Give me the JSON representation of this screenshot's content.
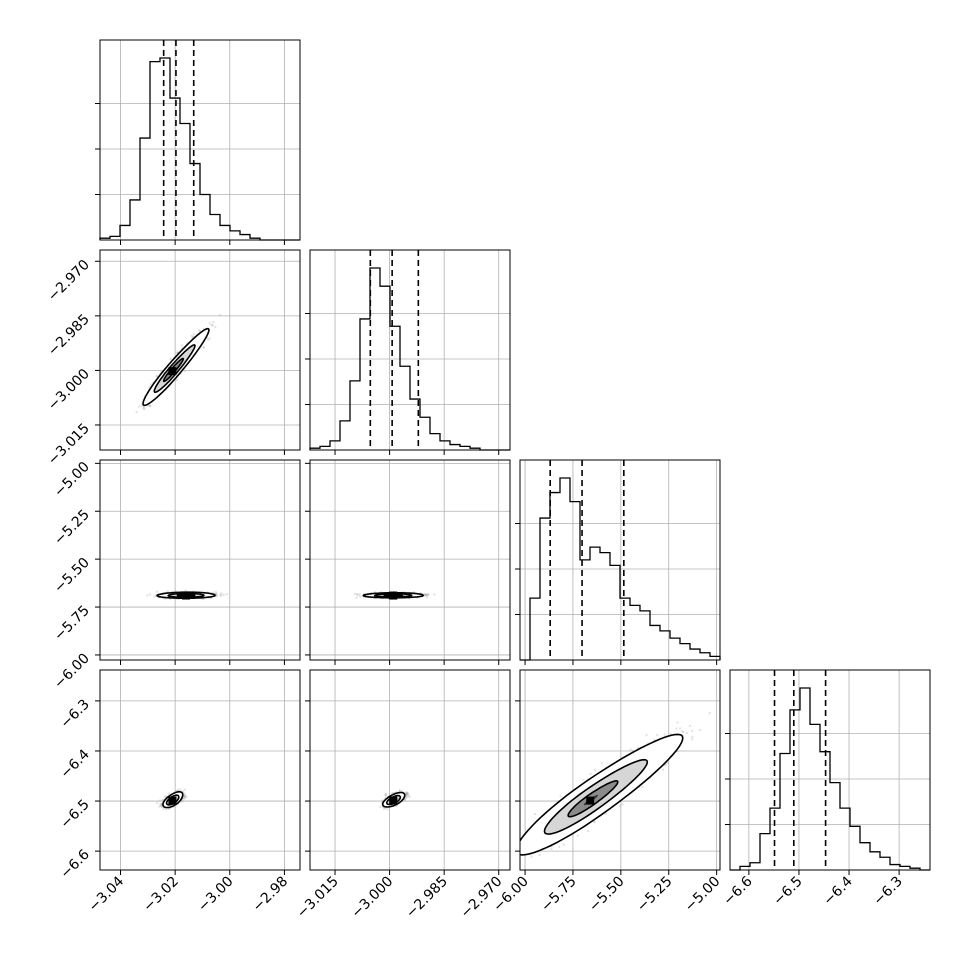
{
  "chart_data": {
    "type": "corner",
    "grid": true,
    "colors": {
      "line": "#000000",
      "grid": "#b0b0b0",
      "points": "#9a9a9a"
    },
    "parameters": [
      {
        "range": [
          -3.0475,
          -2.9743
        ],
        "ticks": [
          -3.04,
          -3.02,
          -3.0,
          -2.98
        ],
        "tick_labels": [
          "−3.04",
          "−3.02",
          "−3.00",
          "−2.98"
        ],
        "quantiles": [
          -3.0242,
          -3.0197,
          -3.0132
        ]
      },
      {
        "range": [
          -3.02188,
          -2.9669
        ],
        "ticks": [
          -3.015,
          -3.0,
          -2.985,
          -2.97
        ],
        "tick_labels": [
          "−3.015",
          "−3.000",
          "−2.985",
          "−2.970"
        ],
        "quantiles": [
          -3.0053,
          -2.9993,
          -2.9921
        ]
      },
      {
        "range": [
          -6.0264,
          -4.9825
        ],
        "ticks": [
          -6.0,
          -5.75,
          -5.5,
          -5.25,
          -5.0
        ],
        "tick_labels": [
          "−6.00",
          "−5.75",
          "−5.50",
          "−5.25",
          "−5.00"
        ],
        "quantiles": [
          -5.8688,
          -5.7025,
          -5.4845
        ]
      },
      {
        "range": [
          -6.6377,
          -6.2383
        ],
        "ticks": [
          -6.6,
          -6.5,
          -6.4,
          -6.3
        ],
        "tick_labels": [
          "−6.6",
          "−6.5",
          "−6.4",
          "−6.3"
        ],
        "quantiles": [
          -6.5488,
          -6.5103,
          -6.4468
        ]
      }
    ],
    "histograms": [
      [
        1,
        2,
        8,
        22,
        56,
        98,
        100,
        78,
        64,
        42,
        25,
        14,
        8,
        5,
        3,
        1,
        0,
        0,
        0,
        0
      ],
      [
        1,
        2,
        5,
        16,
        38,
        72,
        100,
        90,
        68,
        46,
        28,
        18,
        9,
        5,
        3,
        2,
        1,
        0,
        0,
        0
      ],
      [
        0,
        34,
        78,
        92,
        100,
        87,
        55,
        62,
        59,
        52,
        34,
        30,
        27,
        19,
        16,
        12,
        9,
        6,
        4,
        2
      ],
      [
        0,
        2,
        4,
        20,
        34,
        64,
        88,
        100,
        80,
        65,
        48,
        34,
        24,
        15,
        10,
        7,
        3,
        2,
        1,
        0
      ]
    ],
    "pairs": [
      {
        "x": 0,
        "y": 1,
        "center": [
          -3.021,
          -3.0002
        ],
        "slope": 0.87,
        "minor_sd": 0.00095,
        "major_sd": 0.006
      },
      {
        "x": 0,
        "y": 2,
        "center": [
          -3.016,
          -5.69
        ],
        "slope": 18.0,
        "minor_sd": 0.0045,
        "major_sd": 0.006
      },
      {
        "x": 1,
        "y": 2,
        "center": [
          -2.999,
          -5.69
        ],
        "slope": 23.0,
        "minor_sd": 0.0035,
        "major_sd": 0.005
      },
      {
        "x": 0,
        "y": 3,
        "center": [
          -3.021,
          -6.499
        ],
        "slope": 6.8,
        "minor_sd": 0.0012,
        "major_sd": 0.006
      },
      {
        "x": 1,
        "y": 3,
        "center": [
          -2.999,
          -6.499
        ],
        "slope": 7.5,
        "minor_sd": 0.001,
        "major_sd": 0.0055
      },
      {
        "x": 2,
        "y": 3,
        "center": [
          -5.66,
          -6.499
        ],
        "slope": 0.26,
        "minor_sd": 0.018,
        "major_sd": 0.17
      }
    ]
  }
}
